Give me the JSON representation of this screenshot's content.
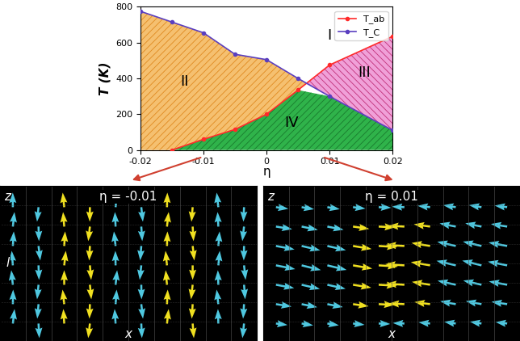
{
  "chart_data": {
    "type": "line",
    "x": [
      -0.02,
      -0.015,
      -0.01,
      -0.005,
      0,
      0.005,
      0.01,
      0.02
    ],
    "series": [
      {
        "name": "T_ab",
        "color": "#ff2a2a",
        "marker": "o",
        "values": [
          null,
          0,
          60,
          115,
          200,
          335,
          475,
          635
        ]
      },
      {
        "name": "T_C",
        "color": "#5a3fc0",
        "marker": "o",
        "values": [
          775,
          715,
          655,
          535,
          505,
          400,
          300,
          110
        ]
      }
    ],
    "x_label": "η",
    "y_label": "T (K)",
    "xlim": [
      -0.02,
      0.02
    ],
    "xticks": [
      -0.02,
      -0.01,
      0,
      0.01,
      0.02
    ],
    "ylim": [
      0,
      800
    ],
    "yticks": [
      0,
      200,
      400,
      600,
      800
    ],
    "legend": "upper right",
    "regions": [
      "I",
      "II",
      "III",
      "IV"
    ]
  },
  "panels": [
    {
      "title": "η = -0.01",
      "vertical_label": "z",
      "length_label": "l",
      "horizontal_label": "x"
    },
    {
      "title": "η = 0.01",
      "vertical_label": "z",
      "horizontal_label": "x"
    }
  ]
}
